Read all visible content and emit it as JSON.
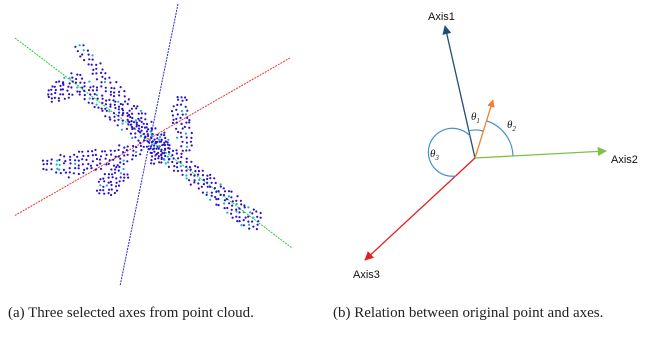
{
  "panel_a": {
    "caption_label": "(a)",
    "caption_text": "Three selected axes from point cloud.",
    "colors": {
      "axis_green": "#2ecc40",
      "axis_red": "#ee3333",
      "axis_blue": "#2a2ad0",
      "points": "#2a10c8",
      "points_alt": "#18b0c8"
    },
    "object": "airplane point cloud"
  },
  "panel_b": {
    "caption_label": "(b)",
    "caption_text": "Relation between original point and axes.",
    "labels": {
      "axis1": "Axis1",
      "axis2": "Axis2",
      "axis3": "Axis3",
      "theta1": "θ",
      "theta1_sub": "1",
      "theta2": "θ",
      "theta2_sub": "2",
      "theta3": "θ",
      "theta3_sub": "3"
    },
    "colors": {
      "axis1": "#1f4e79",
      "axis2": "#7cc242",
      "axis3": "#e02020",
      "point": "#f08030",
      "arcs": "#4a90c8"
    }
  }
}
